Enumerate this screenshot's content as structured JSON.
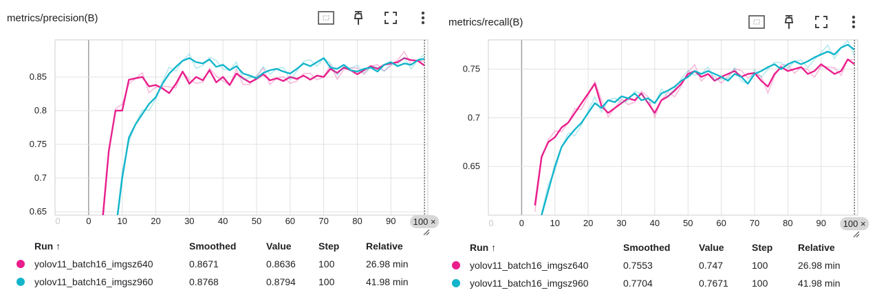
{
  "toolbar_icons": [
    "fit-domain-icon",
    "pin-icon",
    "fullscreen-icon",
    "more-vert-icon"
  ],
  "legend_headers": {
    "run": "Run ↑",
    "smoothed": "Smoothed",
    "value": "Value",
    "step": "Step",
    "relative": "Relative"
  },
  "colors": {
    "run_640": "#e91e8c",
    "run_960": "#12b5cb",
    "grid": "#e0e0e0",
    "axis": "#bdbdbd"
  },
  "cards": [
    {
      "title": "metrics/precision(B)",
      "rows": [
        {
          "run": "yolov11_batch16_imgsz640",
          "smoothed": "0.8671",
          "value": "0.8636",
          "step": "100",
          "relative": "26.98 min"
        },
        {
          "run": "yolov11_batch16_imgsz960",
          "smoothed": "0.8768",
          "value": "0.8794",
          "step": "100",
          "relative": "41.98 min"
        }
      ]
    },
    {
      "title": "metrics/recall(B)",
      "rows": [
        {
          "run": "yolov11_batch16_imgsz640",
          "smoothed": "0.7553",
          "value": "0.747",
          "step": "100",
          "relative": "26.98 min"
        },
        {
          "run": "yolov11_batch16_imgsz960",
          "smoothed": "0.7704",
          "value": "0.7671",
          "step": "100",
          "relative": "41.98 min"
        }
      ]
    }
  ],
  "chart_data": [
    {
      "type": "line",
      "title": "metrics/precision(B)",
      "xlim": [
        -10,
        101
      ],
      "ylim": [
        0.645,
        0.905
      ],
      "xticks": [
        "0",
        "10",
        "20",
        "30",
        "40",
        "50",
        "60",
        "70",
        "80",
        "90"
      ],
      "x_faint_ticks": [
        "0",
        "1"
      ],
      "x_hover_label": "100 ×",
      "yticks": [
        "0.65",
        "0.7",
        "0.75",
        "0.8",
        "0.85"
      ],
      "grid": true,
      "series": [
        {
          "name": "yolov11_batch16_imgsz640",
          "x": [
            4,
            6,
            8,
            10,
            12,
            14,
            16,
            18,
            20,
            22,
            24,
            26,
            28,
            30,
            32,
            34,
            36,
            38,
            40,
            42,
            44,
            46,
            48,
            50,
            52,
            54,
            56,
            58,
            60,
            62,
            64,
            66,
            68,
            70,
            72,
            74,
            76,
            78,
            80,
            82,
            84,
            86,
            88,
            90,
            92,
            94,
            96,
            98,
            100
          ],
          "values": [
            0.63,
            0.74,
            0.8,
            0.8,
            0.846,
            0.848,
            0.85,
            0.836,
            0.838,
            0.833,
            0.826,
            0.84,
            0.858,
            0.84,
            0.85,
            0.845,
            0.86,
            0.842,
            0.85,
            0.838,
            0.855,
            0.848,
            0.842,
            0.847,
            0.854,
            0.845,
            0.848,
            0.844,
            0.85,
            0.847,
            0.852,
            0.846,
            0.852,
            0.85,
            0.862,
            0.856,
            0.864,
            0.86,
            0.854,
            0.86,
            0.866,
            0.862,
            0.868,
            0.87,
            0.872,
            0.878,
            0.875,
            0.874,
            0.867
          ]
        },
        {
          "name": "yolov11_batch16_imgsz960",
          "x": [
            8,
            10,
            12,
            14,
            16,
            18,
            20,
            22,
            24,
            26,
            28,
            30,
            32,
            34,
            36,
            38,
            40,
            42,
            44,
            46,
            48,
            50,
            52,
            54,
            56,
            58,
            60,
            62,
            64,
            66,
            68,
            70,
            72,
            74,
            76,
            78,
            80,
            82,
            84,
            86,
            88,
            90,
            92,
            94,
            96,
            98,
            100
          ],
          "values": [
            0.62,
            0.7,
            0.76,
            0.78,
            0.795,
            0.81,
            0.82,
            0.84,
            0.855,
            0.865,
            0.874,
            0.878,
            0.872,
            0.87,
            0.876,
            0.865,
            0.868,
            0.86,
            0.866,
            0.855,
            0.852,
            0.848,
            0.856,
            0.86,
            0.862,
            0.858,
            0.855,
            0.862,
            0.87,
            0.866,
            0.872,
            0.878,
            0.864,
            0.862,
            0.868,
            0.86,
            0.858,
            0.862,
            0.864,
            0.858,
            0.868,
            0.872,
            0.866,
            0.87,
            0.868,
            0.875,
            0.877
          ]
        }
      ]
    },
    {
      "type": "line",
      "title": "metrics/recall(B)",
      "xlim": [
        -10,
        101
      ],
      "ylim": [
        0.6,
        0.78
      ],
      "xticks": [
        "0",
        "10",
        "20",
        "30",
        "40",
        "50",
        "60",
        "70",
        "80",
        "90"
      ],
      "x_faint_ticks": [
        "0",
        "1"
      ],
      "x_hover_label": "100 ×",
      "yticks": [
        "0.65",
        "0.7",
        "0.75"
      ],
      "grid": true,
      "series": [
        {
          "name": "yolov11_batch16_imgsz640",
          "x": [
            4,
            6,
            8,
            10,
            12,
            14,
            16,
            18,
            20,
            22,
            24,
            26,
            28,
            30,
            32,
            34,
            36,
            38,
            40,
            42,
            44,
            46,
            48,
            50,
            52,
            54,
            56,
            58,
            60,
            62,
            64,
            66,
            68,
            70,
            72,
            74,
            76,
            78,
            80,
            82,
            84,
            86,
            88,
            90,
            92,
            94,
            96,
            98,
            100
          ],
          "values": [
            0.61,
            0.66,
            0.675,
            0.68,
            0.69,
            0.695,
            0.705,
            0.715,
            0.725,
            0.735,
            0.712,
            0.705,
            0.71,
            0.715,
            0.72,
            0.718,
            0.725,
            0.715,
            0.705,
            0.718,
            0.722,
            0.728,
            0.735,
            0.745,
            0.748,
            0.742,
            0.745,
            0.738,
            0.742,
            0.745,
            0.748,
            0.742,
            0.745,
            0.746,
            0.738,
            0.732,
            0.745,
            0.752,
            0.748,
            0.75,
            0.752,
            0.745,
            0.748,
            0.755,
            0.75,
            0.745,
            0.748,
            0.76,
            0.755
          ]
        },
        {
          "name": "yolov11_batch16_imgsz960",
          "x": [
            6,
            8,
            10,
            12,
            14,
            16,
            18,
            20,
            22,
            24,
            26,
            28,
            30,
            32,
            34,
            36,
            38,
            40,
            42,
            44,
            46,
            48,
            50,
            52,
            54,
            56,
            58,
            60,
            62,
            64,
            66,
            68,
            70,
            72,
            74,
            76,
            78,
            80,
            82,
            84,
            86,
            88,
            90,
            92,
            94,
            96,
            98,
            100
          ],
          "values": [
            0.6,
            0.625,
            0.65,
            0.67,
            0.68,
            0.688,
            0.695,
            0.705,
            0.715,
            0.71,
            0.718,
            0.716,
            0.722,
            0.72,
            0.725,
            0.718,
            0.72,
            0.715,
            0.725,
            0.728,
            0.732,
            0.738,
            0.742,
            0.748,
            0.745,
            0.748,
            0.745,
            0.742,
            0.738,
            0.745,
            0.742,
            0.735,
            0.745,
            0.748,
            0.752,
            0.755,
            0.75,
            0.755,
            0.758,
            0.755,
            0.758,
            0.762,
            0.765,
            0.768,
            0.765,
            0.772,
            0.775,
            0.77
          ]
        }
      ]
    }
  ]
}
